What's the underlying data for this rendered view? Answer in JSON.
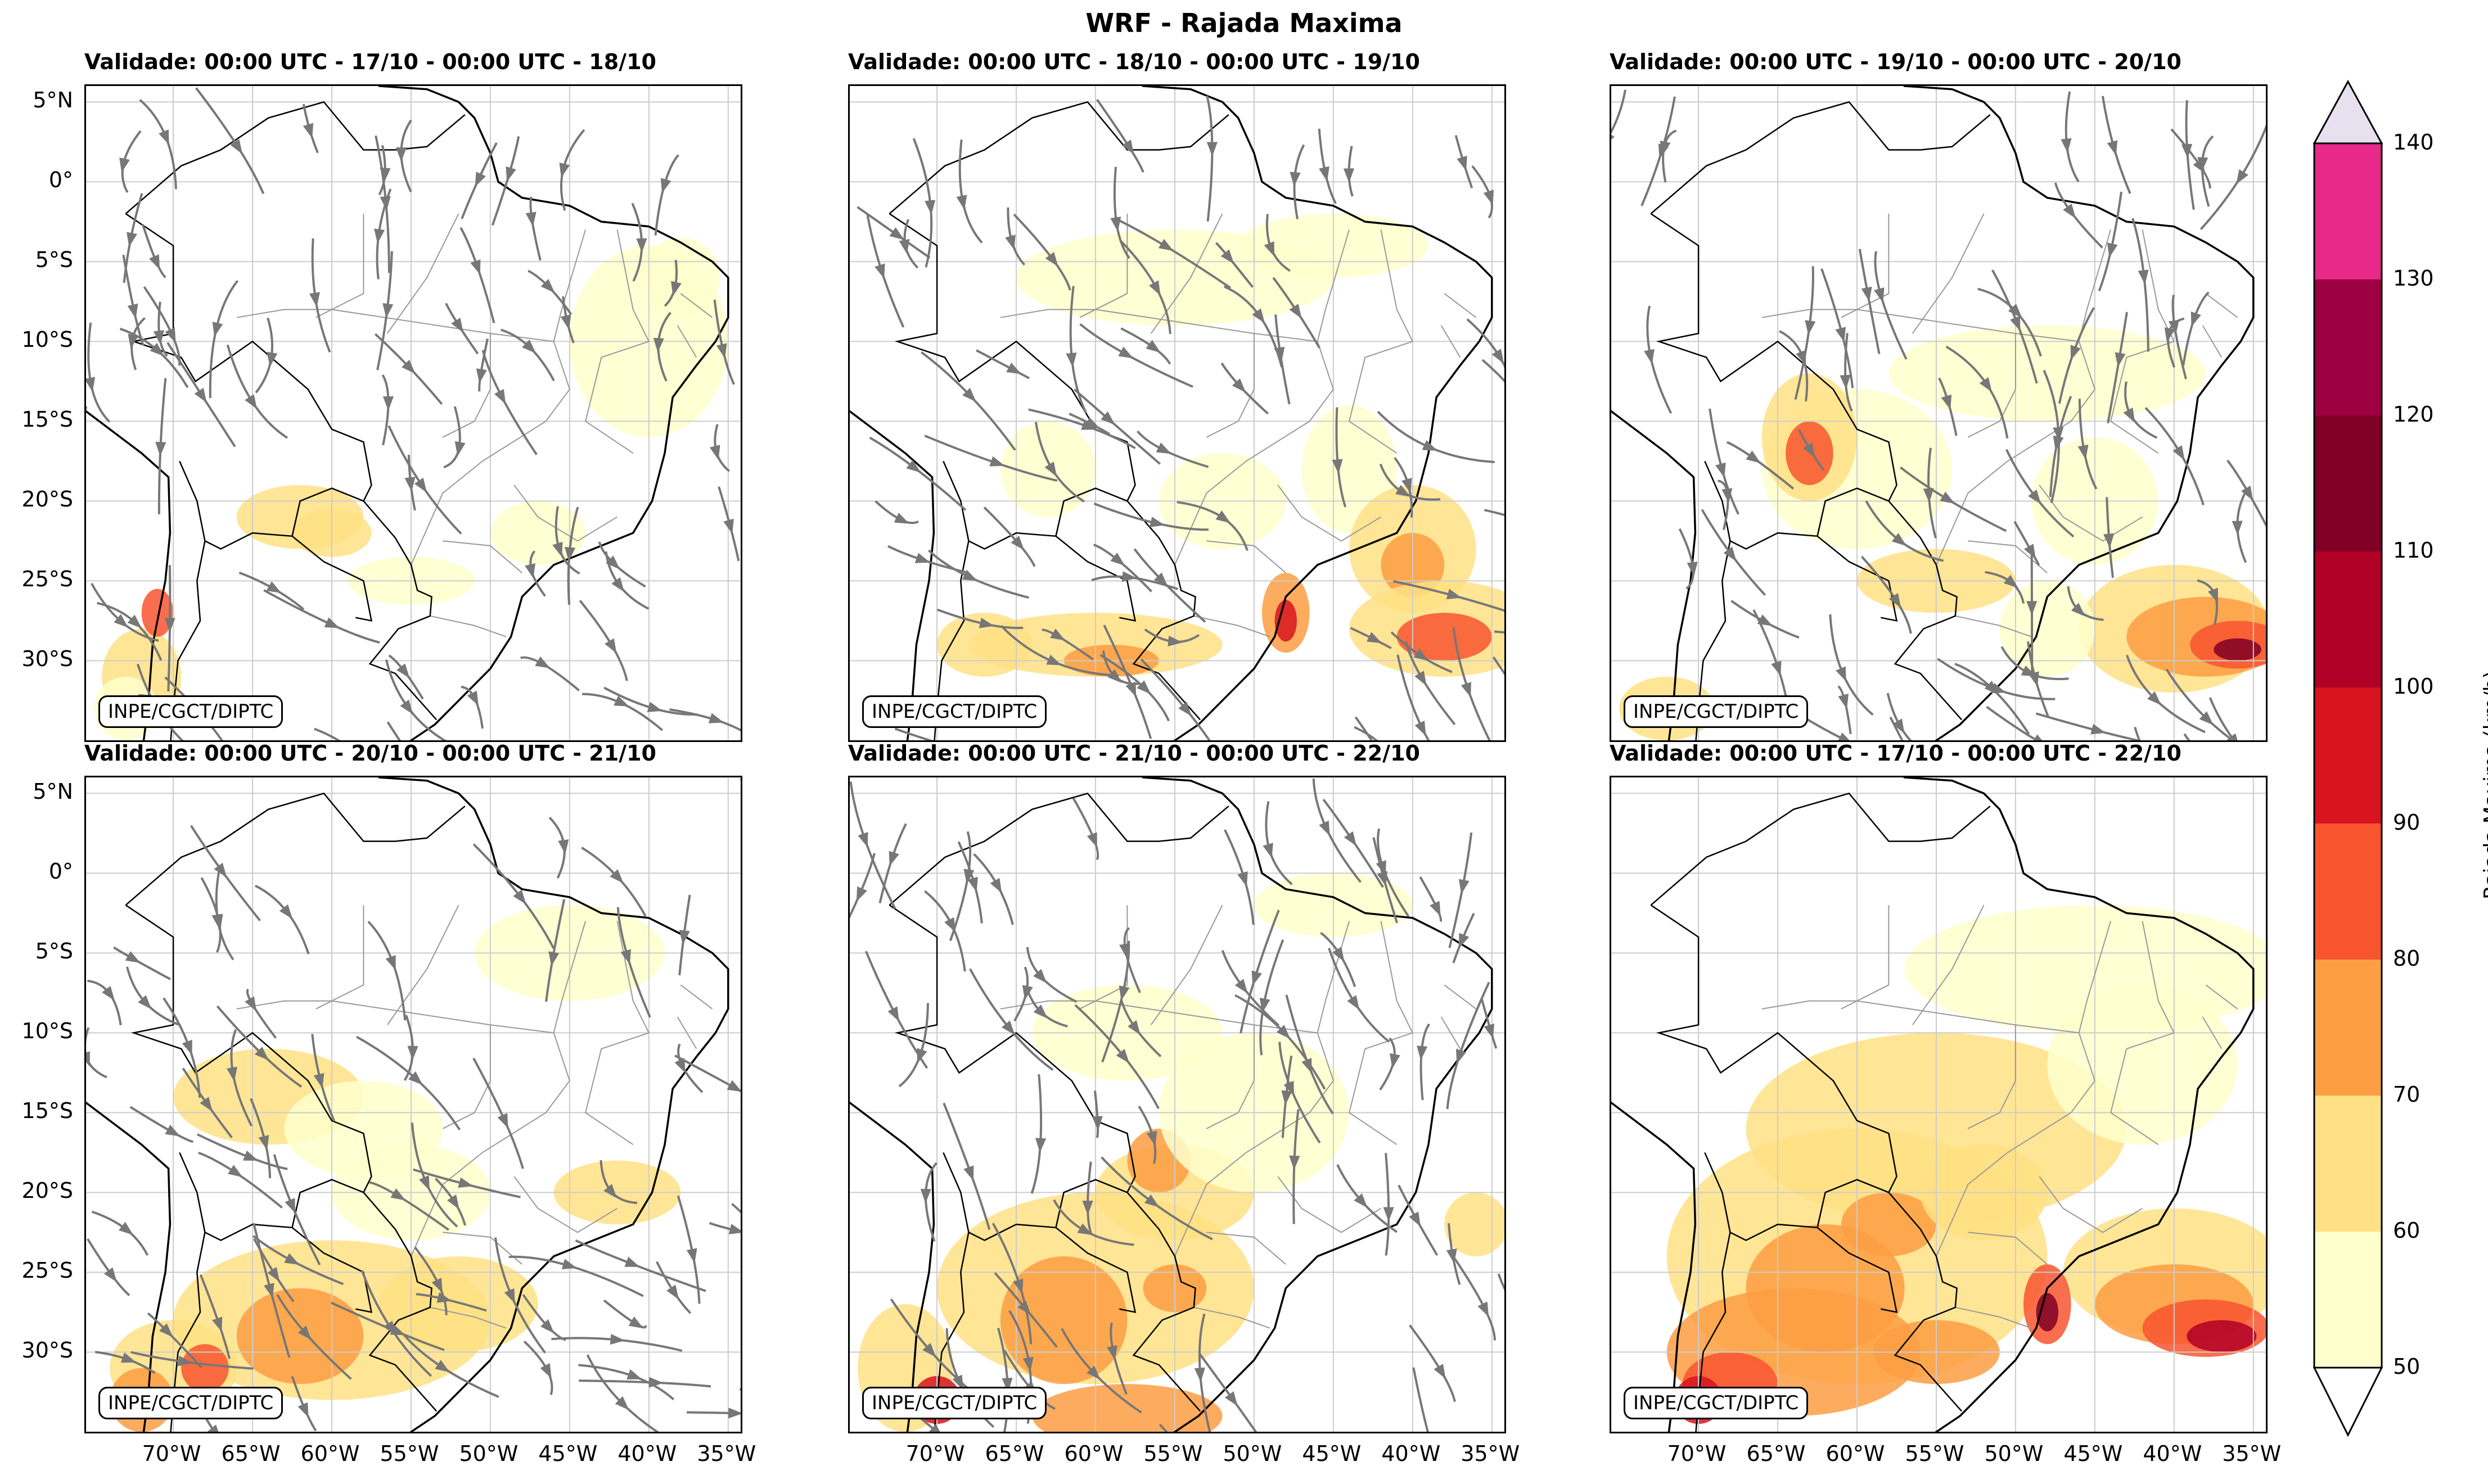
{
  "title": "WRF - Rajada Maxima",
  "panels": [
    {
      "id": "p1",
      "title": "Validade: 00:00 UTC - 17/10 - 00:00 UTC - 18/10",
      "credit": "INPE/CGCT/DIPTC",
      "streamlines": true
    },
    {
      "id": "p2",
      "title": "Validade: 00:00 UTC - 18/10 - 00:00 UTC - 19/10",
      "credit": "INPE/CGCT/DIPTC",
      "streamlines": true
    },
    {
      "id": "p3",
      "title": "Validade: 00:00 UTC - 19/10 - 00:00 UTC - 20/10",
      "credit": "INPE/CGCT/DIPTC",
      "streamlines": true
    },
    {
      "id": "p4",
      "title": "Validade: 00:00 UTC - 20/10 - 00:00 UTC - 21/10",
      "credit": "INPE/CGCT/DIPTC",
      "streamlines": true
    },
    {
      "id": "p5",
      "title": "Validade: 00:00 UTC - 21/10 - 00:00 UTC - 22/10",
      "credit": "INPE/CGCT/DIPTC",
      "streamlines": true
    },
    {
      "id": "p6",
      "title": "Validade: 00:00 UTC - 17/10 - 00:00 UTC - 22/10",
      "credit": "INPE/CGCT/DIPTC",
      "streamlines": false
    }
  ],
  "latitude_labels": [
    "5°N",
    "0°",
    "5°S",
    "10°S",
    "15°S",
    "20°S",
    "25°S",
    "30°S"
  ],
  "longitude_labels": [
    "70°W",
    "65°W",
    "60°W",
    "55°W",
    "50°W",
    "45°W",
    "40°W",
    "35°W"
  ],
  "colorbar": {
    "label": "Rajada Maxima (km/h)",
    "ticks": [
      "50",
      "60",
      "70",
      "80",
      "90",
      "100",
      "110",
      "120",
      "130",
      "140"
    ],
    "colors": [
      "#ffffcc",
      "#ffe084",
      "#fd9e43",
      "#f8552f",
      "#d7141f",
      "#b10026",
      "#800026",
      "#9e0142",
      "#e7298a",
      "#c994c7",
      "#e7e1ef"
    ]
  },
  "map_colors": {
    "land_border": "#000000",
    "state_border": "#999999",
    "grid": "#cccccc",
    "streamline": "#777777"
  }
}
